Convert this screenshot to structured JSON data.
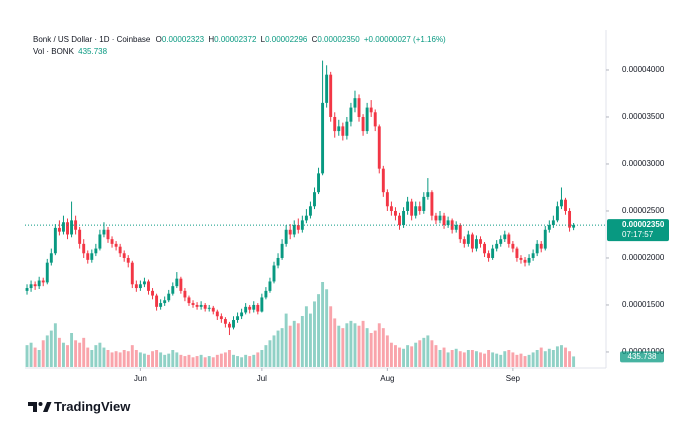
{
  "chart_data": {
    "type": "candlestick",
    "header": {
      "title": "Bonk / US Dollar · 1D · Coinbase",
      "ohlc": [
        {
          "label": "O",
          "value": "0.00002323"
        },
        {
          "label": "H",
          "value": "0.00002372"
        },
        {
          "label": "L",
          "value": "0.00002296"
        },
        {
          "label": "C",
          "value": "0.00002350"
        }
      ],
      "change": "+0.00000027 (+1.16%)",
      "volume_label": "Vol · BONK"
    },
    "last_price_label": "0.00002350",
    "countdown": "07:17:57",
    "brand": "TradingView",
    "up_color": "#089981",
    "down_color": "#f23645",
    "xlim": [
      -0.5,
      143
    ],
    "xticks": [
      {
        "value": 28,
        "label": "Jun"
      },
      {
        "value": 58,
        "label": "Jul"
      },
      {
        "value": 89,
        "label": "Aug"
      },
      {
        "value": 120,
        "label": "Sep"
      }
    ],
    "ylim": [
      8.4e-06,
      4.319e-05
    ],
    "yticks": [
      {
        "value": 4e-05,
        "label": "0.00004000"
      },
      {
        "value": 3.5e-05,
        "label": "0.00003500"
      },
      {
        "value": 3e-05,
        "label": "0.00003000"
      },
      {
        "value": 2.5e-05,
        "label": "0.00002500"
      },
      {
        "value": 2e-05,
        "label": "0.00002000"
      },
      {
        "value": 1.5e-05,
        "label": "0.00001500"
      },
      {
        "value": 1e-05,
        "label": "0.00001000"
      }
    ],
    "grid": false,
    "open": [
      1.65e-05,
      1.68e-05,
      1.72e-05,
      1.7e-05,
      1.76e-05,
      1.74e-05,
      1.95e-05,
      2.05e-05,
      2.32e-05,
      2.28e-05,
      2.38e-05,
      2.25e-05,
      2.4e-05,
      2.3e-05,
      2.15e-05,
      2.05e-05,
      1.98e-05,
      2.05e-05,
      2.1e-05,
      2.25e-05,
      2.3e-05,
      2.2e-05,
      2.15e-05,
      2.12e-05,
      2.05e-05,
      2e-05,
      1.95e-05,
      1.72e-05,
      1.68e-05,
      1.72e-05,
      1.75e-05,
      1.65e-05,
      1.6e-05,
      1.48e-05,
      1.52e-05,
      1.55e-05,
      1.62e-05,
      1.7e-05,
      1.78e-05,
      1.65e-05,
      1.58e-05,
      1.52e-05,
      1.5e-05,
      1.48e-05,
      1.5e-05,
      1.46e-05,
      1.47e-05,
      1.43e-05,
      1.38e-05,
      1.35e-05,
      1.3e-05,
      1.26e-05,
      1.34e-05,
      1.38e-05,
      1.42e-05,
      1.48e-05,
      1.45e-05,
      1.5e-05,
      1.43e-05,
      1.58e-05,
      1.65e-05,
      1.75e-05,
      1.92e-05,
      2e-05,
      2.15e-05,
      2.3e-05,
      2.25e-05,
      2.35e-05,
      2.3e-05,
      2.4e-05,
      2.45e-05,
      2.55e-05,
      2.7e-05,
      2.9e-05,
      3.65e-05,
      3.95e-05,
      3.5e-05,
      3.35e-05,
      3.4e-05,
      3.3e-05,
      3.45e-05,
      3.6e-05,
      3.7e-05,
      3.5e-05,
      3.35e-05,
      3.6e-05,
      3.55e-05,
      3.4e-05,
      2.95e-05,
      2.7e-05,
      2.55e-05,
      2.5e-05,
      2.45e-05,
      2.35e-05,
      2.5e-05,
      2.6e-05,
      2.45e-05,
      2.55e-05,
      2.5e-05,
      2.65e-05,
      2.7e-05,
      2.45e-05,
      2.4e-05,
      2.45e-05,
      2.35e-05,
      2.4e-05,
      2.3e-05,
      2.35e-05,
      2.2e-05,
      2.15e-05,
      2.25e-05,
      2.1e-05,
      2.2e-05,
      2.15e-05,
      2.05e-05,
      2e-05,
      2.1e-05,
      2.15e-05,
      2.2e-05,
      2.25e-05,
      2.15e-05,
      2.1e-05,
      2e-05,
      1.98e-05,
      1.95e-05,
      2e-05,
      2.05e-05,
      2.15e-05,
      2.1e-05,
      2.3e-05,
      2.35e-05,
      2.4e-05,
      2.55e-05,
      2.62e-05,
      2.5e-05,
      2.323e-05
    ],
    "high": [
      1.72e-05,
      1.76e-05,
      1.75e-05,
      1.8e-05,
      1.79e-05,
      1.99e-05,
      2.1e-05,
      2.36e-05,
      2.4e-05,
      2.45e-05,
      2.42e-05,
      2.6e-05,
      2.45e-05,
      2.33e-05,
      2.2e-05,
      2.08e-05,
      2.09e-05,
      2.15e-05,
      2.3e-05,
      2.38e-05,
      2.33e-05,
      2.23e-05,
      2.18e-05,
      2.15e-05,
      2.08e-05,
      2.03e-05,
      1.97e-05,
      1.76e-05,
      1.76e-05,
      1.79e-05,
      1.77e-05,
      1.68e-05,
      1.62e-05,
      1.56e-05,
      1.59e-05,
      1.66e-05,
      1.74e-05,
      1.85e-05,
      1.8e-05,
      1.68e-05,
      1.6e-05,
      1.55e-05,
      1.53e-05,
      1.54e-05,
      1.52e-05,
      1.5e-05,
      1.49e-05,
      1.45e-05,
      1.41e-05,
      1.37e-05,
      1.32e-05,
      1.38e-05,
      1.42e-05,
      1.46e-05,
      1.52e-05,
      1.5e-05,
      1.54e-05,
      1.52e-05,
      1.62e-05,
      1.69e-05,
      1.79e-05,
      1.96e-05,
      2.05e-05,
      2.2e-05,
      2.35e-05,
      2.36e-05,
      2.4e-05,
      2.42e-05,
      2.45e-05,
      2.52e-05,
      2.6e-05,
      2.75e-05,
      2.96e-05,
      4.1e-05,
      4.05e-05,
      3.98e-05,
      3.55e-05,
      3.47e-05,
      3.44e-05,
      3.5e-05,
      3.65e-05,
      3.78e-05,
      3.74e-05,
      3.53e-05,
      3.65e-05,
      3.68e-05,
      3.58e-05,
      3.42e-05,
      2.98e-05,
      2.73e-05,
      2.6e-05,
      2.54e-05,
      2.48e-05,
      2.54e-05,
      2.65e-05,
      2.63e-05,
      2.6e-05,
      2.6e-05,
      2.7e-05,
      2.85e-05,
      2.72e-05,
      2.48e-05,
      2.5e-05,
      2.48e-05,
      2.44e-05,
      2.42e-05,
      2.39e-05,
      2.37e-05,
      2.23e-05,
      2.29e-05,
      2.27e-05,
      2.24e-05,
      2.23e-05,
      2.17e-05,
      2.08e-05,
      2.14e-05,
      2.19e-05,
      2.24e-05,
      2.29e-05,
      2.27e-05,
      2.18e-05,
      2.12e-05,
      2.03e-05,
      2.01e-05,
      2.04e-05,
      2.09e-05,
      2.19e-05,
      2.18e-05,
      2.34e-05,
      2.4e-05,
      2.45e-05,
      2.6e-05,
      2.75e-05,
      2.64e-05,
      2.53e-05,
      2.372e-05
    ],
    "low": [
      1.61e-05,
      1.64e-05,
      1.66e-05,
      1.67e-05,
      1.7e-05,
      1.72e-05,
      1.92e-05,
      2.03e-05,
      2.24e-05,
      2.25e-05,
      2.2e-05,
      2.22e-05,
      2.25e-05,
      2.1e-05,
      2e-05,
      1.94e-05,
      1.95e-05,
      2.02e-05,
      2.08e-05,
      2.22e-05,
      2.16e-05,
      2.11e-05,
      2.08e-05,
      2.01e-05,
      1.96e-05,
      1.9e-05,
      1.68e-05,
      1.64e-05,
      1.65e-05,
      1.69e-05,
      1.61e-05,
      1.56e-05,
      1.44e-05,
      1.45e-05,
      1.49e-05,
      1.53e-05,
      1.6e-05,
      1.68e-05,
      1.62e-05,
      1.54e-05,
      1.49e-05,
      1.47e-05,
      1.45e-05,
      1.45e-05,
      1.43e-05,
      1.43e-05,
      1.4e-05,
      1.34e-05,
      1.31e-05,
      1.26e-05,
      1.18e-05,
      1.24e-05,
      1.31e-05,
      1.35e-05,
      1.4e-05,
      1.41e-05,
      1.42e-05,
      1.4e-05,
      1.42e-05,
      1.56e-05,
      1.63e-05,
      1.73e-05,
      1.89e-05,
      1.98e-05,
      2.12e-05,
      2.2e-05,
      2.22e-05,
      2.26e-05,
      2.27e-05,
      2.37e-05,
      2.42e-05,
      2.52e-05,
      2.68e-05,
      2.88e-05,
      3.6e-05,
      3.45e-05,
      3.28e-05,
      3.3e-05,
      3.25e-05,
      3.26e-05,
      3.4e-05,
      3.55e-05,
      3.45e-05,
      3.3e-05,
      3.32e-05,
      3.5e-05,
      3.35e-05,
      2.9e-05,
      2.65e-05,
      2.5e-05,
      2.45e-05,
      2.4e-05,
      2.3e-05,
      2.32e-05,
      2.46e-05,
      2.4e-05,
      2.42e-05,
      2.46e-05,
      2.47e-05,
      2.62e-05,
      2.4e-05,
      2.36e-05,
      2.37e-05,
      2.31e-05,
      2.32e-05,
      2.26e-05,
      2.27e-05,
      2.16e-05,
      2.11e-05,
      2.12e-05,
      2.06e-05,
      2.07e-05,
      2.11e-05,
      2.01e-05,
      1.96e-05,
      1.98e-05,
      2.07e-05,
      2.12e-05,
      2.17e-05,
      2.11e-05,
      2.06e-05,
      1.96e-05,
      1.94e-05,
      1.91e-05,
      1.92e-05,
      1.97e-05,
      2.02e-05,
      2.06e-05,
      2.08e-05,
      2.27e-05,
      2.32e-05,
      2.38e-05,
      2.52e-05,
      2.46e-05,
      2.28e-05,
      2.296e-05
    ],
    "close": [
      1.68e-05,
      1.72e-05,
      1.7e-05,
      1.76e-05,
      1.74e-05,
      1.95e-05,
      2.05e-05,
      2.32e-05,
      2.28e-05,
      2.38e-05,
      2.25e-05,
      2.4e-05,
      2.3e-05,
      2.15e-05,
      2.05e-05,
      1.98e-05,
      2.05e-05,
      2.1e-05,
      2.25e-05,
      2.3e-05,
      2.2e-05,
      2.15e-05,
      2.12e-05,
      2.05e-05,
      2e-05,
      1.95e-05,
      1.72e-05,
      1.68e-05,
      1.72e-05,
      1.75e-05,
      1.65e-05,
      1.6e-05,
      1.48e-05,
      1.52e-05,
      1.55e-05,
      1.62e-05,
      1.7e-05,
      1.78e-05,
      1.65e-05,
      1.58e-05,
      1.52e-05,
      1.5e-05,
      1.48e-05,
      1.5e-05,
      1.46e-05,
      1.47e-05,
      1.43e-05,
      1.38e-05,
      1.35e-05,
      1.3e-05,
      1.26e-05,
      1.34e-05,
      1.38e-05,
      1.42e-05,
      1.48e-05,
      1.45e-05,
      1.5e-05,
      1.43e-05,
      1.58e-05,
      1.65e-05,
      1.75e-05,
      1.92e-05,
      2e-05,
      2.15e-05,
      2.3e-05,
      2.25e-05,
      2.35e-05,
      2.3e-05,
      2.4e-05,
      2.45e-05,
      2.55e-05,
      2.7e-05,
      2.9e-05,
      3.65e-05,
      3.95e-05,
      3.5e-05,
      3.35e-05,
      3.4e-05,
      3.3e-05,
      3.45e-05,
      3.6e-05,
      3.7e-05,
      3.5e-05,
      3.35e-05,
      3.6e-05,
      3.55e-05,
      3.4e-05,
      2.95e-05,
      2.7e-05,
      2.55e-05,
      2.5e-05,
      2.45e-05,
      2.35e-05,
      2.5e-05,
      2.6e-05,
      2.45e-05,
      2.55e-05,
      2.5e-05,
      2.65e-05,
      2.7e-05,
      2.45e-05,
      2.4e-05,
      2.45e-05,
      2.35e-05,
      2.4e-05,
      2.3e-05,
      2.35e-05,
      2.2e-05,
      2.15e-05,
      2.25e-05,
      2.1e-05,
      2.2e-05,
      2.15e-05,
      2.05e-05,
      2e-05,
      2.1e-05,
      2.15e-05,
      2.2e-05,
      2.25e-05,
      2.15e-05,
      2.1e-05,
      2e-05,
      1.98e-05,
      1.95e-05,
      2e-05,
      2.05e-05,
      2.15e-05,
      2.1e-05,
      2.3e-05,
      2.35e-05,
      2.4e-05,
      2.55e-05,
      2.62e-05,
      2.5e-05,
      2.323e-05,
      2.35e-05
    ],
    "volume": [
      900,
      1000,
      800,
      700,
      1100,
      1300,
      1500,
      1800,
      1200,
      1000,
      900,
      1400,
      1100,
      1000,
      1200,
      800,
      700,
      900,
      1000,
      800,
      700,
      600,
      650,
      600,
      700,
      650,
      900,
      700,
      600,
      550,
      500,
      650,
      700,
      600,
      500,
      550,
      700,
      600,
      500,
      450,
      500,
      400,
      450,
      500,
      400,
      450,
      400,
      500,
      550,
      600,
      700,
      500,
      450,
      400,
      500,
      450,
      500,
      600,
      700,
      900,
      1100,
      1300,
      1500,
      1600,
      2200,
      1700,
      1900,
      1800,
      2100,
      2500,
      2200,
      2700,
      3000,
      3500,
      3200,
      2500,
      2000,
      1700,
      1600,
      1800,
      1900,
      1800,
      1700,
      1900,
      1600,
      1400,
      1500,
      1800,
      1600,
      1300,
      1000,
      900,
      800,
      750,
      900,
      850,
      1000,
      1100,
      1200,
      1300,
      1100,
      900,
      700,
      800,
      600,
      700,
      750,
      650,
      600,
      700,
      700,
      650,
      600,
      550,
      700,
      600,
      550,
      500,
      650,
      700,
      600,
      500,
      550,
      450,
      500,
      600,
      700,
      800,
      650,
      750,
      700,
      850,
      900,
      800,
      650,
      435.738
    ]
  }
}
